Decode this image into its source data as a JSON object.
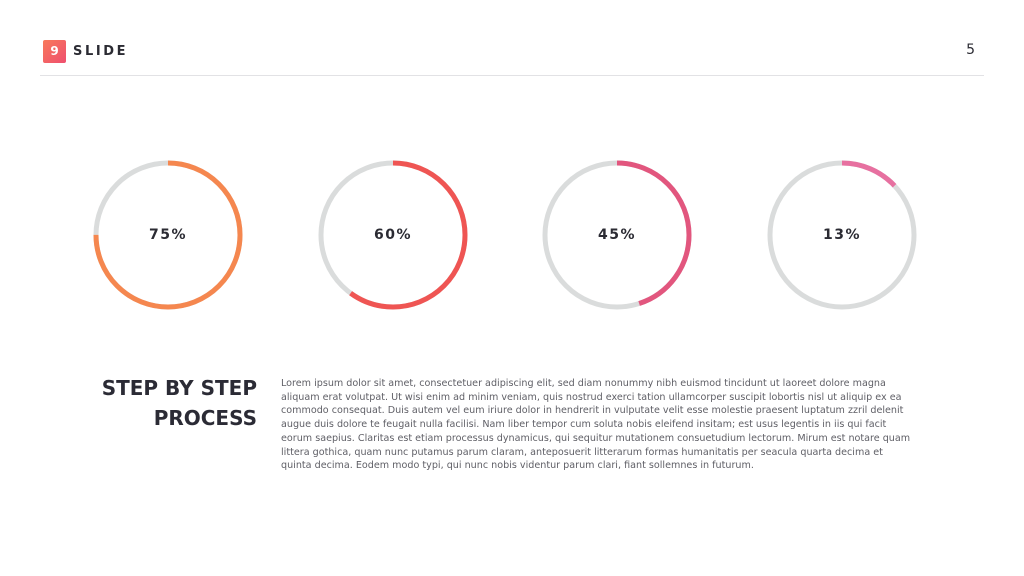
{
  "header": {
    "badge_number": "9",
    "title": "SLIDE",
    "page_number": "5"
  },
  "rings": [
    {
      "label": "75%",
      "value": 0.75,
      "color": "#f5874f"
    },
    {
      "label": "60%",
      "value": 0.6,
      "color": "#ef5553"
    },
    {
      "label": "45%",
      "value": 0.45,
      "color": "#e2567e"
    },
    {
      "label": "13%",
      "value": 0.13,
      "color": "#e770a0"
    }
  ],
  "track_color": "#dadcdc",
  "section": {
    "title": "STEP BY STEP PROCESS",
    "body": "Lorem ipsum dolor sit amet, consectetuer adipiscing elit, sed diam nonummy nibh euismod tincidunt ut laoreet dolore magna aliquam erat volutpat. Ut wisi enim ad minim veniam, quis nostrud exerci tation ullamcorper suscipit lobortis nisl ut aliquip ex ea commodo consequat. Duis autem vel eum iriure dolor in hendrerit in vulputate velit esse molestie praesent luptatum zzril delenit augue duis dolore te feugait nulla facilisi. Nam liber tempor cum soluta nobis eleifend insitam; est usus legentis in iis qui facit eorum saepius. Claritas est etiam processus dynamicus, qui sequitur mutationem consuetudium lectorum. Mirum est notare quam littera gothica, quam nunc putamus parum claram, anteposuerit litterarum formas humanitatis per seacula quarta decima et quinta decima. Eodem modo typi, qui nunc nobis videntur parum clari, fiant sollemnes in futurum."
  }
}
